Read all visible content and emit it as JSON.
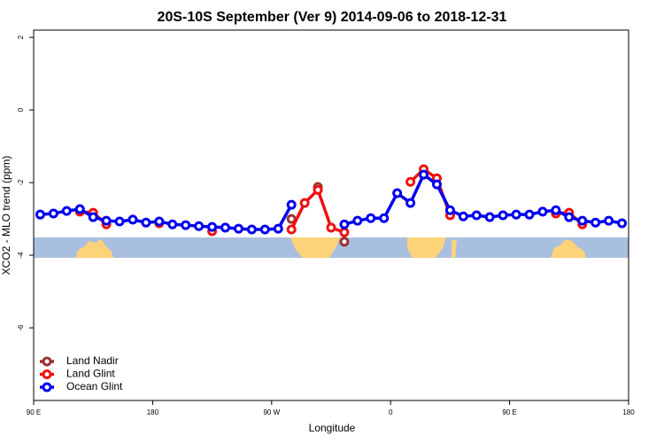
{
  "chart_data": {
    "type": "line",
    "title": "20S-10S September (Ver 9)   2014-09-06 to 2018-12-31",
    "x_label": "Longitude",
    "y_label": "XCO2 - MLO trend (ppm)",
    "xlim": [
      90,
      540
    ],
    "xticks": [
      {
        "value": 90,
        "label": "90 E"
      },
      180,
      {
        "value": 270,
        "label": "90 W"
      },
      {
        "value": 360,
        "label": "0"
      },
      {
        "value": 450,
        "label": "90 E"
      },
      {
        "value": 540,
        "label": "180"
      }
    ],
    "ylim": [
      -8,
      2.2
    ],
    "yticks": [
      -6,
      -4,
      -2,
      0,
      2
    ],
    "legend": "bottom-left",
    "series": [
      {
        "name": "Land Nadir",
        "color": "#993333",
        "x": [
          285,
          295,
          305,
          315,
          325
        ],
        "values": [
          -3.0,
          null,
          -2.12,
          null,
          -3.63
        ]
      },
      {
        "name": "Land Glint",
        "color": "#ee1111",
        "x": [
          125,
          135,
          145,
          155,
          185,
          195,
          225,
          235,
          285,
          295,
          305,
          315,
          325,
          335,
          375,
          385,
          395,
          405,
          415,
          485,
          495,
          505
        ],
        "values": [
          -2.8,
          -2.83,
          -3.15,
          null,
          -3.12,
          null,
          -3.34,
          null,
          -3.29,
          -2.56,
          -2.2,
          -3.24,
          -3.37,
          null,
          -1.98,
          -1.63,
          -1.88,
          -2.9,
          null,
          -2.85,
          -2.83,
          -3.15
        ]
      },
      {
        "name": "Ocean Glint",
        "color": "#0000ee",
        "x": [
          95,
          105,
          115,
          125,
          135,
          145,
          155,
          165,
          175,
          185,
          195,
          205,
          215,
          225,
          235,
          245,
          255,
          265,
          275,
          285,
          295,
          305,
          315,
          325,
          335,
          345,
          355,
          365,
          375,
          385,
          395,
          405,
          415,
          425,
          435,
          445,
          455,
          465,
          475,
          485,
          495,
          505,
          515,
          525,
          535
        ],
        "values": [
          -2.88,
          -2.85,
          -2.78,
          -2.73,
          -2.95,
          -3.05,
          -3.07,
          -3.02,
          -3.1,
          -3.07,
          -3.15,
          -3.17,
          -3.2,
          -3.22,
          -3.24,
          -3.27,
          -3.29,
          -3.29,
          -3.27,
          -2.61,
          null,
          null,
          null,
          -3.15,
          -3.05,
          -2.98,
          -2.98,
          -2.29,
          -2.56,
          -1.78,
          -2.05,
          -2.76,
          -2.93,
          -2.9,
          -2.95,
          -2.9,
          -2.88,
          -2.88,
          -2.8,
          -2.76,
          -2.95,
          -3.05,
          -3.1,
          -3.05,
          -3.12
        ]
      }
    ]
  }
}
